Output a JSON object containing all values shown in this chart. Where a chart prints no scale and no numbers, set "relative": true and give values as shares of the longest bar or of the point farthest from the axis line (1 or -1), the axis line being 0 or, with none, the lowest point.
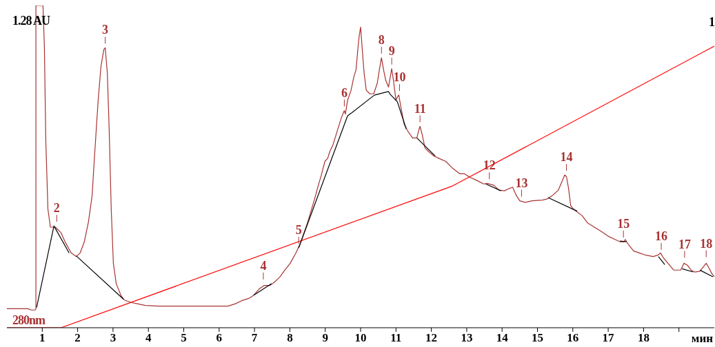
{
  "chart_data": {
    "type": "line",
    "relative": true,
    "xlabel": "мин",
    "xlim": [
      0,
      20
    ],
    "xticks": [
      1,
      2,
      3,
      4,
      5,
      6,
      7,
      8,
      9,
      10,
      11,
      12,
      13,
      14,
      15,
      16,
      17,
      18,
      {
        "value": 19,
        "label": null
      }
    ],
    "marker": "none",
    "line_style": "solid",
    "series": [
      {
        "color": "#ff0000",
        "x": [
          0,
          1.53,
          12.6,
          20
        ],
        "values": [
          0,
          0,
          0.44,
          0.874
        ]
      },
      {
        "color": "#a83232",
        "x": [
          0,
          0.59,
          0.69,
          0.8,
          0.82,
          0.82,
          1.02,
          1.06,
          1.1,
          1.16,
          1.23,
          1.37,
          1.53,
          1.66,
          1.82,
          1.96,
          2.07,
          2.19,
          2.31,
          2.41,
          2.48,
          2.58,
          2.66,
          2.74,
          2.78,
          2.84,
          2.89,
          2.95,
          3.01,
          3.09,
          3.23,
          3.32,
          3.52,
          3.71,
          3.91,
          4.3,
          5.67,
          6.25,
          6.45,
          6.64,
          6.84,
          6.98,
          7.13,
          7.27,
          7.43,
          7.56,
          7.72,
          7.86,
          8.01,
          8.17,
          8.3,
          8.5,
          8.7,
          8.79,
          8.89,
          8.99,
          9.07,
          9.13,
          9.22,
          9.34,
          9.46,
          9.54,
          9.57,
          9.63,
          9.73,
          9.81,
          9.87,
          9.93,
          9.96,
          10.0,
          10.04,
          10.1,
          10.16,
          10.26,
          10.37,
          10.47,
          10.53,
          10.59,
          10.65,
          10.71,
          10.79,
          10.84,
          10.88,
          10.94,
          11.0,
          11.04,
          11.08,
          11.14,
          11.23,
          11.33,
          11.47,
          11.59,
          11.64,
          11.68,
          11.74,
          11.82,
          11.92,
          12.07,
          12.21,
          12.41,
          12.6,
          12.8,
          12.93,
          13.09,
          13.29,
          13.48,
          13.58,
          13.77,
          13.91,
          14.07,
          14.2,
          14.3,
          14.4,
          14.5,
          14.65,
          14.85,
          15.14,
          15.28,
          15.43,
          15.59,
          15.69,
          15.77,
          15.82,
          15.88,
          15.94,
          16.02,
          16.14,
          16.27,
          16.41,
          16.61,
          16.8,
          17.0,
          17.19,
          17.33,
          17.45,
          17.48,
          17.58,
          17.72,
          17.88,
          18.07,
          18.27,
          18.4,
          18.48,
          18.56,
          18.66,
          18.85,
          19.05,
          19.14,
          19.24,
          19.34,
          19.44,
          19.59,
          19.69,
          19.77,
          19.83,
          19.93,
          20.0
        ],
        "values": [
          0.059,
          0.059,
          0.055,
          0.055,
          0.059,
          1,
          1,
          0.874,
          0.579,
          0.368,
          0.312,
          0.312,
          0.295,
          0.263,
          0.232,
          0.221,
          0.232,
          0.267,
          0.331,
          0.411,
          0.537,
          0.705,
          0.811,
          0.863,
          0.869,
          0.789,
          0.621,
          0.368,
          0.2,
          0.137,
          0.099,
          0.086,
          0.078,
          0.074,
          0.069,
          0.067,
          0.067,
          0.067,
          0.074,
          0.084,
          0.091,
          0.101,
          0.12,
          0.131,
          0.131,
          0.141,
          0.158,
          0.179,
          0.2,
          0.232,
          0.263,
          0.326,
          0.4,
          0.436,
          0.474,
          0.516,
          0.526,
          0.547,
          0.568,
          0.611,
          0.653,
          0.674,
          0.663,
          0.705,
          0.737,
          0.779,
          0.8,
          0.874,
          0.905,
          0.933,
          0.874,
          0.789,
          0.737,
          0.726,
          0.726,
          0.758,
          0.8,
          0.838,
          0.8,
          0.768,
          0.747,
          0.779,
          0.804,
          0.758,
          0.705,
          0.716,
          0.722,
          0.684,
          0.632,
          0.611,
          0.589,
          0.589,
          0.611,
          0.625,
          0.6,
          0.558,
          0.547,
          0.533,
          0.526,
          0.516,
          0.495,
          0.478,
          0.478,
          0.467,
          0.457,
          0.446,
          0.448,
          0.442,
          0.427,
          0.425,
          0.432,
          0.436,
          0.411,
          0.394,
          0.389,
          0.394,
          0.396,
          0.4,
          0.411,
          0.427,
          0.453,
          0.474,
          0.469,
          0.432,
          0.379,
          0.368,
          0.358,
          0.347,
          0.326,
          0.312,
          0.299,
          0.284,
          0.274,
          0.267,
          0.267,
          0.274,
          0.257,
          0.238,
          0.232,
          0.225,
          0.221,
          0.225,
          0.232,
          0.217,
          0.204,
          0.179,
          0.179,
          0.2,
          0.194,
          0.179,
          0.173,
          0.175,
          0.189,
          0.2,
          0.189,
          0.168,
          0.158
        ]
      },
      {
        "color": "#000000",
        "x": [
          0.84,
          1.33,
          1.76,
          1.86,
          1.96,
          3.3,
          5.0,
          6.98,
          7.48,
          7.9,
          8.25,
          9.13,
          9.63,
          10.39,
          10.79,
          10.84,
          11.04,
          11.29,
          11.45,
          11.59,
          12.11,
          12.8,
          13.54,
          13.97,
          14.6,
          15.3,
          16.12,
          16.8,
          17.33,
          17.52,
          18.0,
          18.42,
          18.6,
          18.9,
          19.09,
          19.4,
          19.5,
          19.59,
          19.96
        ],
        "values": [
          0.063,
          0.316,
          0.232,
          null,
          0.223,
          0.088,
          null,
          0.101,
          0.137,
          null,
          0.248,
          0.509,
          0.657,
          0.722,
          0.733,
          0.724,
          0.701,
          0.617,
          null,
          0.589,
          0.533,
          null,
          0.446,
          0.425,
          null,
          0.404,
          0.362,
          null,
          0.269,
          0.267,
          null,
          0.221,
          0.196,
          null,
          0.183,
          0.173,
          null,
          0.179,
          0.158
        ]
      }
    ],
    "annotations": [
      "1.28 AU",
      "280nm",
      "1",
      {
        "text": "2",
        "x": 1.41,
        "y": 0.316
      },
      {
        "text": "3",
        "x": 2.78,
        "y": 0.869
      },
      {
        "text": "4",
        "x": 7.25,
        "y": 0.137
      },
      {
        "text": "5",
        "x": 8.25,
        "y": 0.248
      },
      {
        "text": "6",
        "x": 9.54,
        "y": 0.674
      },
      {
        "text": "8",
        "x": 10.59,
        "y": 0.838
      },
      {
        "text": "9",
        "x": 10.88,
        "y": 0.804
      },
      {
        "text": "10",
        "x": 11.1,
        "y": 0.722
      },
      {
        "text": "11",
        "x": 11.68,
        "y": 0.625
      },
      {
        "text": "12",
        "x": 13.64,
        "y": 0.448
      },
      {
        "text": "13",
        "x": 14.55,
        "y": 0.394
      },
      {
        "text": "14",
        "x": 15.82,
        "y": 0.474
      },
      {
        "text": "15",
        "x": 17.43,
        "y": 0.267
      },
      {
        "text": "16",
        "x": 18.5,
        "y": 0.229
      },
      {
        "text": "17",
        "x": 19.16,
        "y": 0.204
      },
      {
        "text": "18",
        "x": 19.77,
        "y": 0.206
      }
    ]
  }
}
